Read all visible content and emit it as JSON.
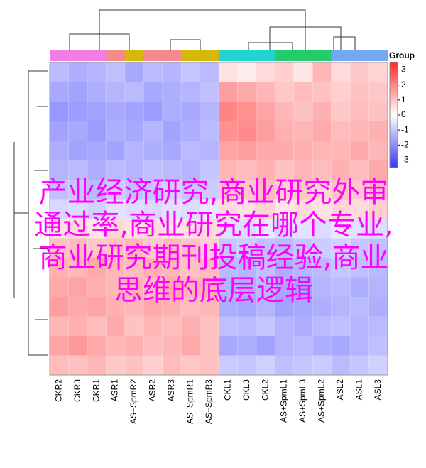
{
  "chart_data": {
    "type": "heatmap",
    "columns": [
      "CKR2",
      "CKR3",
      "CKR1",
      "ASR1",
      "AS+SpmR2",
      "ASR2",
      "ASR3",
      "AS+SpmR1",
      "AS+SpmR3",
      "CKL1",
      "CKL3",
      "CKL2",
      "AS+SpmL1",
      "AS+SpmL3",
      "AS+SpmL2",
      "ASL2",
      "ASL1",
      "ASL3"
    ],
    "group_colors": [
      "#f07ee6",
      "#f07ee6",
      "#f07ee6",
      "#f48a8a",
      "#d4b80a",
      "#f48a8a",
      "#f48a8a",
      "#d4b80a",
      "#d4b80a",
      "#20d4d0",
      "#20d4d0",
      "#20d4d0",
      "#22cc6a",
      "#22cc6a",
      "#22cc6a",
      "#74a8f0",
      "#74a8f0",
      "#74a8f0"
    ],
    "legend_title": "Group",
    "colormap": [
      "#3535ff",
      "#ffffff",
      "#ff2a2a"
    ],
    "clim": [
      -3.5,
      3.5
    ],
    "colorbar_ticks": [
      3,
      2,
      1,
      0,
      -1,
      -2,
      -3
    ],
    "values": [
      [
        -1.2,
        -1.4,
        -1.3,
        -1.1,
        -1.5,
        -1.2,
        -1.3,
        -1.0,
        -1.2,
        0.5,
        0.3,
        0.6,
        0.8,
        0.4,
        1.2,
        0.6,
        0.9,
        0.7
      ],
      [
        -1.5,
        -1.6,
        -1.4,
        -1.3,
        -1.2,
        -1.5,
        -1.4,
        -1.3,
        -1.1,
        1.6,
        1.4,
        1.2,
        0.9,
        1.1,
        1.0,
        0.8,
        1.0,
        0.9
      ],
      [
        -1.8,
        -1.7,
        -1.6,
        -1.5,
        -1.6,
        -1.7,
        -1.4,
        -1.5,
        -1.3,
        2.0,
        1.8,
        1.5,
        1.2,
        1.0,
        1.3,
        0.9,
        1.1,
        1.0
      ],
      [
        -1.6,
        -1.5,
        -1.7,
        -1.4,
        -1.5,
        -1.3,
        -1.6,
        -1.4,
        -1.2,
        1.8,
        1.9,
        1.6,
        1.3,
        1.2,
        1.4,
        1.1,
        1.2,
        1.3
      ],
      [
        -1.4,
        -1.6,
        -1.5,
        -1.6,
        -1.3,
        -1.4,
        -1.5,
        -1.2,
        -1.3,
        1.5,
        1.6,
        1.4,
        1.4,
        1.3,
        1.2,
        1.2,
        1.4,
        1.2
      ],
      [
        -1.3,
        -1.2,
        -1.4,
        -1.2,
        -1.3,
        -1.1,
        -1.2,
        -1.3,
        -1.0,
        1.2,
        1.1,
        1.3,
        1.0,
        1.2,
        1.1,
        1.3,
        1.1,
        1.4
      ],
      [
        -1.1,
        -1.0,
        -1.2,
        -0.9,
        -1.1,
        -1.0,
        -0.8,
        -1.0,
        -0.9,
        1.0,
        0.9,
        1.1,
        0.8,
        0.9,
        0.7,
        1.0,
        0.9,
        1.1
      ],
      [
        -0.7,
        -0.6,
        -0.8,
        -0.5,
        -0.6,
        -0.7,
        -0.5,
        -0.6,
        -0.4,
        0.6,
        0.5,
        0.7,
        0.4,
        0.6,
        0.5,
        0.7,
        0.6,
        0.8
      ],
      [
        0.5,
        0.6,
        0.4,
        0.7,
        0.5,
        0.6,
        0.4,
        0.5,
        0.6,
        -0.5,
        -0.6,
        -0.4,
        -0.7,
        -0.5,
        -0.6,
        -0.4,
        -0.5,
        -0.6
      ],
      [
        1.0,
        1.1,
        0.9,
        1.0,
        1.2,
        0.9,
        1.1,
        1.0,
        0.8,
        -1.0,
        -0.9,
        -1.1,
        -1.2,
        -1.0,
        -0.9,
        -0.8,
        -1.0,
        -1.1
      ],
      [
        1.3,
        1.2,
        1.4,
        1.2,
        1.1,
        1.3,
        1.2,
        1.0,
        1.1,
        -1.2,
        -1.3,
        -1.1,
        -1.4,
        -1.3,
        -1.2,
        -1.0,
        -1.1,
        -1.2
      ],
      [
        1.4,
        1.5,
        1.3,
        1.2,
        1.3,
        1.1,
        1.4,
        1.2,
        1.3,
        -1.3,
        -1.4,
        -1.2,
        -1.5,
        -1.6,
        -1.3,
        -1.2,
        -1.4,
        -1.3
      ],
      [
        1.6,
        1.4,
        1.5,
        1.3,
        1.2,
        1.4,
        1.3,
        1.1,
        1.2,
        -1.4,
        -1.5,
        -1.3,
        -1.6,
        -1.5,
        -1.4,
        -1.3,
        -1.2,
        -1.4
      ],
      [
        1.2,
        1.3,
        1.1,
        1.4,
        1.0,
        1.2,
        1.1,
        1.3,
        1.0,
        -1.1,
        -1.2,
        -1.0,
        -1.3,
        -1.4,
        -1.2,
        -1.1,
        -1.3,
        -1.2
      ],
      [
        1.5,
        1.7,
        1.4,
        1.2,
        1.3,
        1.1,
        1.2,
        1.4,
        1.0,
        -1.5,
        -1.4,
        -1.6,
        -1.3,
        -1.2,
        -1.4,
        -1.5,
        -1.3,
        -1.1
      ],
      [
        1.1,
        1.0,
        1.2,
        0.9,
        1.0,
        0.8,
        1.1,
        0.9,
        1.0,
        -0.9,
        -1.0,
        -0.8,
        -1.1,
        -1.0,
        -0.9,
        -1.2,
        -1.0,
        -0.8
      ]
    ],
    "overlay_text": "产业经济研究,商业研究外审通过率,商业研究在哪个专业,商业研究期刊投稿经验,商业思维的底层逻辑"
  }
}
